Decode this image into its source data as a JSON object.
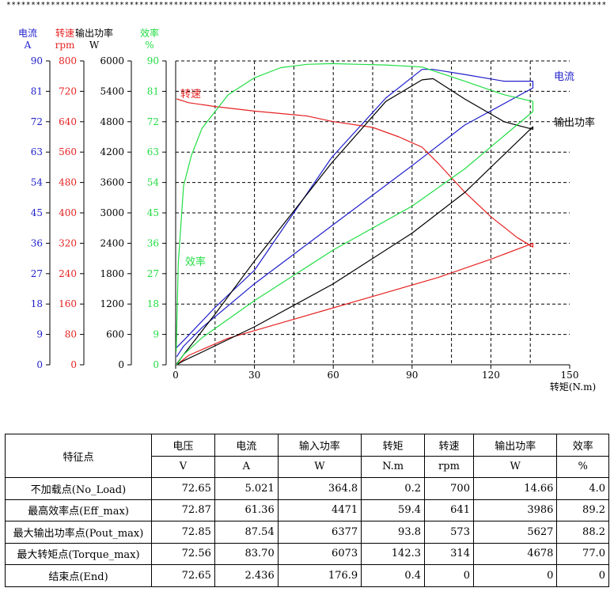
{
  "header": {
    "stars": "**************************************************************************************************************************"
  },
  "chart_data": {
    "type": "line",
    "xlabel": "转矩(N.m)",
    "xlim": [
      0,
      150
    ],
    "xticks": [
      "0",
      "30",
      "60",
      "90",
      "120",
      "150"
    ],
    "y_axes": [
      {
        "name": "电流",
        "unit": "A",
        "color": "#1f1fcc",
        "range": [
          0,
          90
        ],
        "ticks": [
          "0",
          "9",
          "18",
          "27",
          "36",
          "45",
          "54",
          "63",
          "72",
          "81",
          "90"
        ]
      },
      {
        "name": "转速",
        "unit": "rpm",
        "color": "#e52222",
        "range": [
          0,
          800
        ],
        "ticks": [
          "0",
          "80",
          "160",
          "240",
          "320",
          "400",
          "480",
          "560",
          "640",
          "720",
          "800"
        ]
      },
      {
        "name": "输出功率",
        "unit": "W",
        "color": "#000000",
        "range": [
          0,
          6000
        ],
        "ticks": [
          "0",
          "600",
          "1200",
          "1800",
          "2400",
          "3000",
          "3600",
          "4200",
          "4800",
          "5400",
          "6000"
        ]
      },
      {
        "name": "效率",
        "unit": "%",
        "color": "#22dd44",
        "range": [
          0,
          90
        ],
        "ticks": [
          "0",
          "9",
          "18",
          "27",
          "36",
          "45",
          "54",
          "63",
          "72",
          "81",
          "90"
        ]
      }
    ],
    "grid": true,
    "series": [
      {
        "name": "电流",
        "axis": 0,
        "color": "#1f1fcc",
        "x": [
          0.2,
          4,
          15,
          30,
          59.4,
          80,
          93.8,
          98,
          110,
          125,
          136,
          136,
          110,
          90,
          60,
          30,
          10,
          3,
          0.4
        ],
        "y": [
          5.0,
          8,
          17,
          28,
          61.4,
          79,
          87.5,
          87.5,
          86,
          84,
          84,
          82,
          71,
          59,
          41.5,
          24,
          11,
          5.5,
          2.4
        ]
      },
      {
        "name": "转速",
        "axis": 1,
        "color": "#e52222",
        "x": [
          0.4,
          5,
          15,
          30,
          50,
          59.4,
          75,
          85,
          93.8,
          100,
          110,
          120,
          130,
          136,
          136,
          120,
          100,
          80,
          60,
          40,
          20,
          5,
          0.4
        ],
        "y": [
          700,
          690,
          680,
          668,
          655,
          641,
          625,
          600,
          573,
          530,
          455,
          390,
          335,
          310,
          320,
          278,
          230,
          190,
          150,
          110,
          70,
          25,
          0
        ]
      },
      {
        "name": "输出功率",
        "axis": 2,
        "color": "#000000",
        "x": [
          0.4,
          3,
          15,
          30,
          59.4,
          80,
          93.8,
          98,
          110,
          125,
          136,
          136,
          110,
          90,
          60,
          30,
          10,
          3,
          0.4
        ],
        "y": [
          15,
          200,
          1000,
          2050,
          3986,
          5200,
          5627,
          5650,
          5250,
          4800,
          4650,
          4700,
          3400,
          2600,
          1600,
          750,
          250,
          80,
          0
        ]
      },
      {
        "name": "效率",
        "axis": 3,
        "color": "#22dd44",
        "x": [
          0.2,
          1,
          3,
          6,
          10,
          15,
          20,
          30,
          40,
          50,
          59.4,
          70,
          80,
          93.8,
          110,
          125,
          136,
          136,
          110,
          90,
          60,
          30,
          10,
          3,
          0.4
        ],
        "y": [
          4,
          30,
          53,
          62,
          70,
          75,
          80,
          85,
          88,
          89,
          89.2,
          89,
          88.8,
          88.2,
          84,
          80,
          78,
          75,
          58,
          47,
          34,
          19,
          8,
          3,
          0
        ]
      }
    ],
    "curve_labels": [
      {
        "text": "电流",
        "color": "#1f1fcc"
      },
      {
        "text": "转速",
        "color": "#e52222"
      },
      {
        "text": "输出功率",
        "color": "#000000"
      },
      {
        "text": "效率",
        "color": "#22dd44"
      }
    ]
  },
  "table": {
    "corner": "特征点",
    "headers": [
      {
        "name": "电压",
        "unit": "V"
      },
      {
        "name": "电流",
        "unit": "A"
      },
      {
        "name": "输入功率",
        "unit": "W"
      },
      {
        "name": "转矩",
        "unit": "N.m"
      },
      {
        "name": "转速",
        "unit": "rpm"
      },
      {
        "name": "输出功率",
        "unit": "W"
      },
      {
        "name": "效率",
        "unit": "%"
      }
    ],
    "rows": [
      {
        "label": "不加载点(No_Load)",
        "cells": [
          "72.65",
          "5.021",
          "364.8",
          "0.2",
          "700",
          "14.66",
          "4.0"
        ]
      },
      {
        "label": "最高效率点(Eff_max)",
        "cells": [
          "72.87",
          "61.36",
          "4471",
          "59.4",
          "641",
          "3986",
          "89.2"
        ]
      },
      {
        "label": "最大输出功率点(Pout_max)",
        "cells": [
          "72.85",
          "87.54",
          "6377",
          "93.8",
          "573",
          "5627",
          "88.2"
        ]
      },
      {
        "label": "最大转矩点(Torque_max)",
        "cells": [
          "72.56",
          "83.70",
          "6073",
          "142.3",
          "314",
          "4678",
          "77.0"
        ]
      },
      {
        "label": "结束点(End)",
        "cells": [
          "72.65",
          "2.436",
          "176.9",
          "0.4",
          "0",
          "0",
          "0"
        ]
      }
    ]
  }
}
